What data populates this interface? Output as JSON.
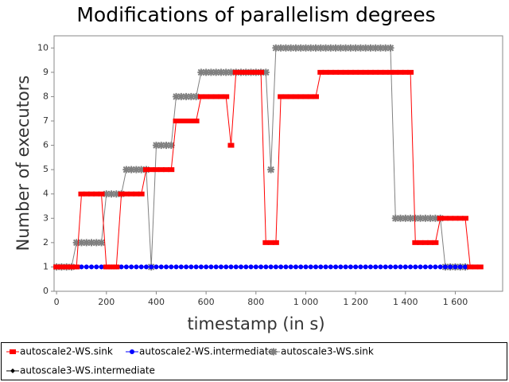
{
  "chart_data": {
    "type": "line",
    "title": "Modifications of parallelism degrees",
    "x_label": "timestamp (in s)",
    "y_label": "Number of executors",
    "x": [
      0,
      20,
      40,
      60,
      80,
      100,
      120,
      140,
      160,
      180,
      200,
      220,
      240,
      260,
      280,
      300,
      320,
      340,
      360,
      380,
      400,
      420,
      440,
      460,
      480,
      500,
      520,
      540,
      560,
      580,
      600,
      620,
      640,
      660,
      680,
      700,
      720,
      740,
      760,
      780,
      800,
      820,
      840,
      860,
      880,
      900,
      920,
      940,
      960,
      980,
      1000,
      1020,
      1040,
      1060,
      1080,
      1100,
      1120,
      1140,
      1160,
      1180,
      1200,
      1220,
      1240,
      1260,
      1280,
      1300,
      1320,
      1340,
      1360,
      1380,
      1400,
      1420,
      1440,
      1460,
      1480,
      1500,
      1520,
      1540,
      1560,
      1580,
      1600,
      1620,
      1640,
      1660,
      1680,
      1700
    ],
    "series": [
      {
        "name": "autoscale2-WS.sink",
        "color": "#ff0000",
        "marker": "square",
        "values": [
          1,
          1,
          1,
          1,
          1,
          4,
          4,
          4,
          4,
          4,
          1,
          1,
          1,
          4,
          4,
          4,
          4,
          4,
          5,
          5,
          5,
          5,
          5,
          5,
          7,
          7,
          7,
          7,
          7,
          8,
          8,
          8,
          8,
          8,
          8,
          6,
          9,
          9,
          9,
          9,
          9,
          9,
          2,
          2,
          2,
          8,
          8,
          8,
          8,
          8,
          8,
          8,
          8,
          9,
          9,
          9,
          9,
          9,
          9,
          9,
          9,
          9,
          9,
          9,
          9,
          9,
          9,
          9,
          9,
          9,
          9,
          9,
          2,
          2,
          2,
          2,
          2,
          3,
          3,
          3,
          3,
          3,
          3,
          1,
          1,
          1
        ]
      },
      {
        "name": "autoscale2-WS.intermediate",
        "color": "#0000ff",
        "marker": "circle",
        "values": [
          null,
          null,
          null,
          null,
          1,
          1,
          1,
          1,
          1,
          1,
          1,
          1,
          1,
          1,
          1,
          1,
          1,
          1,
          1,
          1,
          1,
          1,
          1,
          1,
          1,
          1,
          1,
          1,
          1,
          1,
          1,
          1,
          1,
          1,
          1,
          1,
          1,
          1,
          1,
          1,
          1,
          1,
          1,
          1,
          1,
          1,
          1,
          1,
          1,
          1,
          1,
          1,
          1,
          1,
          1,
          1,
          1,
          1,
          1,
          1,
          1,
          1,
          1,
          1,
          1,
          1,
          1,
          1,
          1,
          1,
          1,
          1,
          1,
          1,
          1,
          1,
          1,
          1,
          1,
          1,
          1,
          1,
          1,
          null,
          null,
          null
        ]
      },
      {
        "name": "autoscale3-WS.sink",
        "color": "#808080",
        "marker": "x",
        "values": [
          1,
          1,
          1,
          1,
          2,
          2,
          2,
          2,
          2,
          2,
          4,
          4,
          4,
          4,
          5,
          5,
          5,
          5,
          5,
          1,
          6,
          6,
          6,
          6,
          8,
          8,
          8,
          8,
          8,
          9,
          9,
          9,
          9,
          9,
          9,
          9,
          9,
          9,
          9,
          9,
          9,
          9,
          9,
          5,
          10,
          10,
          10,
          10,
          10,
          10,
          10,
          10,
          10,
          10,
          10,
          10,
          10,
          10,
          10,
          10,
          10,
          10,
          10,
          10,
          10,
          10,
          10,
          10,
          3,
          3,
          3,
          3,
          3,
          3,
          3,
          3,
          3,
          3,
          1,
          1,
          1,
          1,
          1,
          null,
          null,
          null
        ]
      },
      {
        "name": "autoscale3-WS.intermediate",
        "color": "#000000",
        "marker": "diamond",
        "values": [
          1,
          1,
          1,
          1,
          1,
          1,
          1,
          1,
          1,
          1,
          1,
          1,
          1,
          1,
          1,
          1,
          1,
          1,
          1,
          1,
          1,
          1,
          1,
          1,
          1,
          1,
          1,
          1,
          1,
          1,
          1,
          1,
          1,
          1,
          1,
          1,
          1,
          1,
          1,
          1,
          1,
          1,
          1,
          1,
          1,
          1,
          1,
          1,
          1,
          1,
          1,
          1,
          1,
          1,
          1,
          1,
          1,
          1,
          1,
          1,
          1,
          1,
          1,
          1,
          1,
          1,
          1,
          1,
          1,
          1,
          1,
          1,
          1,
          1,
          1,
          1,
          1,
          1,
          1,
          1,
          1,
          1,
          1,
          null,
          null,
          null
        ]
      }
    ],
    "xlim": [
      -10,
      1790
    ],
    "ylim": [
      0,
      10.5
    ],
    "xticks": [
      0,
      200,
      400,
      600,
      800,
      {
        "value": 1000,
        "label": "1 000"
      },
      {
        "value": 1200,
        "label": "1 200"
      },
      {
        "value": 1400,
        "label": "1 400"
      },
      {
        "value": 1600,
        "label": "1 600"
      }
    ],
    "yticks": [
      0,
      1,
      2,
      3,
      4,
      5,
      6,
      7,
      8,
      9,
      10
    ],
    "grid": false,
    "legend": "bottom"
  }
}
